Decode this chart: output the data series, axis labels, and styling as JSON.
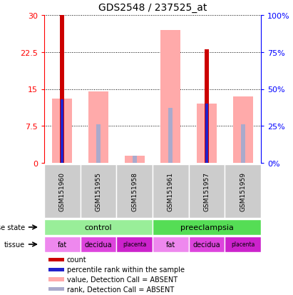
{
  "title": "GDS2548 / 237525_at",
  "samples": [
    "GSM151960",
    "GSM151955",
    "GSM151958",
    "GSM151961",
    "GSM151957",
    "GSM151959"
  ],
  "count_values": [
    30,
    0,
    0,
    0,
    23,
    0
  ],
  "pink_values": [
    13.0,
    14.5,
    1.5,
    27.0,
    12.0,
    13.5
  ],
  "blue_pct": [
    43,
    0,
    0,
    0,
    40,
    0
  ],
  "lightblue_pct": [
    0,
    26,
    5,
    37,
    26,
    26
  ],
  "ylim_left": [
    0,
    30
  ],
  "ylim_right": [
    0,
    100
  ],
  "yticks_left": [
    0,
    7.5,
    15,
    22.5,
    30
  ],
  "yticks_right": [
    0,
    25,
    50,
    75,
    100
  ],
  "ytick_labels_left": [
    "0",
    "7.5",
    "15",
    "22.5",
    "30"
  ],
  "ytick_labels_right": [
    "0%",
    "25%",
    "50%",
    "75%",
    "100%"
  ],
  "color_red": "#cc0000",
  "color_pink": "#ffaaaa",
  "color_blue": "#2222cc",
  "color_lightblue": "#aaaacc",
  "color_control": "#99ee99",
  "color_preeclampsia": "#55dd55",
  "color_gray": "#cccccc",
  "tissue_colors": {
    "fat": "#ee88ee",
    "decidua": "#dd44dd",
    "placenta": "#cc22cc"
  },
  "disease_state": [
    "control",
    "control",
    "control",
    "preeclampsia",
    "preeclampsia",
    "preeclampsia"
  ],
  "tissue": [
    "fat",
    "decidua",
    "placenta",
    "fat",
    "decidua",
    "placenta"
  ],
  "legend_items": [
    {
      "color": "#cc0000",
      "label": "count"
    },
    {
      "color": "#2222cc",
      "label": "percentile rank within the sample"
    },
    {
      "color": "#ffaaaa",
      "label": "value, Detection Call = ABSENT"
    },
    {
      "color": "#aaaacc",
      "label": "rank, Detection Call = ABSENT"
    }
  ]
}
